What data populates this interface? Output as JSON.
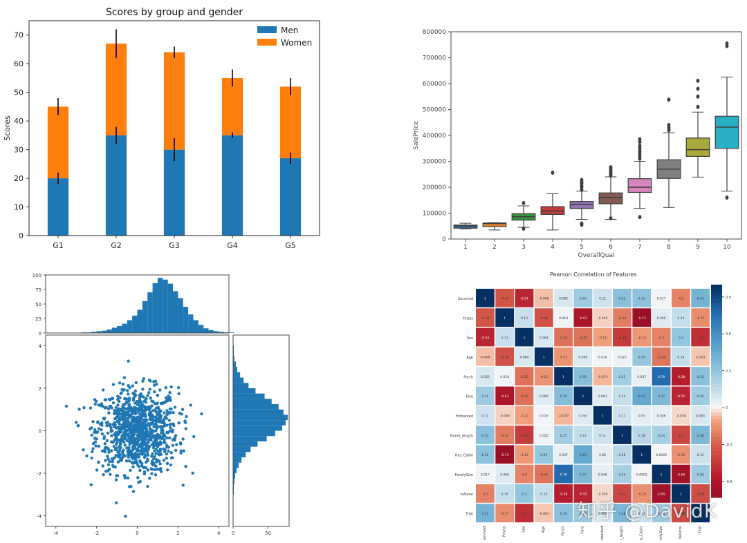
{
  "chart_data": [
    {
      "type": "bar",
      "title": "Scores by group and gender",
      "xlabel": "",
      "ylabel": "Scores",
      "ylim": [
        0,
        75
      ],
      "yticks": [
        0,
        10,
        20,
        30,
        40,
        50,
        60,
        70
      ],
      "categories": [
        "G1",
        "G2",
        "G3",
        "G4",
        "G5"
      ],
      "stacked": true,
      "series": [
        {
          "name": "Men",
          "values": [
            20,
            35,
            30,
            35,
            27
          ],
          "errors": [
            2,
            3,
            4,
            1,
            2
          ],
          "color": "#1f77b4"
        },
        {
          "name": "Women",
          "values": [
            25,
            32,
            34,
            20,
            25
          ],
          "errors": [
            3,
            5,
            2,
            3,
            3
          ],
          "color": "#ff7f0e"
        }
      ],
      "legend": "top-right"
    },
    {
      "type": "box",
      "title": "",
      "xlabel": "OverallQual",
      "ylabel": "SalePrice",
      "ylim": [
        0,
        800000
      ],
      "yticks": [
        0,
        100000,
        200000,
        300000,
        400000,
        500000,
        600000,
        700000,
        800000
      ],
      "categories": [
        "1",
        "2",
        "3",
        "4",
        "5",
        "6",
        "7",
        "8",
        "9",
        "10"
      ],
      "boxes": [
        {
          "whislo": 39300,
          "q1": 42000,
          "med": 50150,
          "q3": 54000,
          "whishi": 61000,
          "fliers": [],
          "color": "#3274a1"
        },
        {
          "whislo": 35000,
          "q1": 48000,
          "med": 60000,
          "q3": 62000,
          "whishi": 63000,
          "fliers": [],
          "color": "#e1812c"
        },
        {
          "whislo": 45000,
          "q1": 73000,
          "med": 86250,
          "q3": 98000,
          "whishi": 128000,
          "fliers": [
            139000,
            40000
          ],
          "color": "#3a923a"
        },
        {
          "whislo": 34900,
          "q1": 95000,
          "med": 108000,
          "q3": 125000,
          "whishi": 175000,
          "fliers": [
            256000
          ],
          "color": "#c03d3e"
        },
        {
          "whislo": 76000,
          "q1": 118000,
          "med": 133000,
          "q3": 145000,
          "whishi": 185000,
          "fliers": [
            190000,
            200000,
            205000,
            215000,
            220000,
            228000,
            60000,
            55000
          ],
          "color": "#9372b2"
        },
        {
          "whislo": 76000,
          "q1": 136000,
          "med": 160000,
          "q3": 178000,
          "whishi": 240000,
          "fliers": [
            245000,
            250000,
            255000,
            262000,
            270000,
            277000,
            80000
          ],
          "color": "#845b53"
        },
        {
          "whislo": 118000,
          "q1": 180000,
          "med": 200000,
          "q3": 233000,
          "whishi": 300000,
          "fliers": [
            310000,
            320000,
            330000,
            340000,
            350000,
            360000,
            375000,
            385000,
            85000
          ],
          "color": "#d684bd"
        },
        {
          "whislo": 122000,
          "q1": 234000,
          "med": 269750,
          "q3": 306000,
          "whishi": 410000,
          "fliers": [
            420000,
            430000,
            440000,
            538000
          ],
          "color": "#7f7f7f"
        },
        {
          "whislo": 239000,
          "q1": 319000,
          "med": 345000,
          "q3": 390000,
          "whishi": 490000,
          "fliers": [
            510000,
            550000,
            580000,
            611000
          ],
          "color": "#a9a83a"
        },
        {
          "whislo": 184750,
          "q1": 350000,
          "med": 432000,
          "q3": 474000,
          "whishi": 625000,
          "fliers": [
            745000,
            755000,
            160000
          ],
          "color": "#2ab0c5"
        }
      ]
    },
    {
      "type": "scatter",
      "title": "",
      "xlabel": "",
      "ylabel": "",
      "main_xlim": [
        -4.5,
        4.5
      ],
      "main_ylim": [
        -4.5,
        4.5
      ],
      "main_xticks": [
        -4,
        -2,
        0,
        2,
        4
      ],
      "main_yticks": [
        -4,
        -2,
        0,
        2,
        4
      ],
      "top_hist": {
        "yticks": [
          0,
          25,
          50,
          75,
          100
        ],
        "ylim": [
          0,
          100
        ],
        "bin_width": 0.25,
        "bin_start": -4,
        "counts": [
          0,
          0,
          0,
          0,
          0,
          1,
          1,
          2,
          3,
          4,
          6,
          9,
          12,
          16,
          22,
          30,
          40,
          55,
          70,
          86,
          95,
          92,
          85,
          72,
          60,
          45,
          32,
          22,
          14,
          8,
          5,
          3,
          2,
          1,
          1,
          0
        ]
      },
      "right_hist": {
        "xticks": [
          0,
          50
        ],
        "xlim": [
          0,
          80
        ],
        "bin_width": 0.25,
        "bin_start": -4,
        "counts": [
          0,
          0,
          0,
          0,
          1,
          1,
          2,
          3,
          5,
          8,
          12,
          18,
          25,
          35,
          48,
          60,
          70,
          75,
          78,
          72,
          65,
          55,
          45,
          32,
          22,
          15,
          10,
          6,
          4,
          2,
          1,
          1,
          0,
          0,
          0,
          0
        ]
      },
      "color": "#1f77b4",
      "n_points": 1000
    },
    {
      "type": "heatmap",
      "title": "Pearson Correlation of Features",
      "labels": [
        "Survived",
        "Pclass",
        "Sex",
        "Age",
        "Parch",
        "Fare",
        "Embarked",
        "Name_length",
        "Has_Cabin",
        "FamilySize",
        "IsAlone",
        "Title"
      ],
      "values": [
        [
          1,
          -0.34,
          -0.54,
          -0.068,
          0.082,
          0.26,
          0.11,
          0.33,
          0.32,
          0.017,
          -0.2,
          0.41
        ],
        [
          -0.34,
          1,
          0.13,
          -0.36,
          0.018,
          -0.63,
          -0.046,
          -0.22,
          -0.73,
          0.066,
          0.14,
          -0.17
        ],
        [
          -0.54,
          0.13,
          1,
          0.084,
          -0.25,
          -0.25,
          -0.12,
          -0.45,
          -0.14,
          -0.2,
          0.3,
          -0.5
        ],
        [
          -0.068,
          -0.36,
          0.084,
          1,
          -0.15,
          0.069,
          0.016,
          0.025,
          0.29,
          -0.24,
          0.14,
          -0.061
        ],
        [
          0.082,
          0.018,
          -0.25,
          -0.15,
          1,
          0.35,
          -0.079,
          0.25,
          0.037,
          0.78,
          -0.58,
          0.33
        ],
        [
          0.26,
          -0.63,
          -0.25,
          0.069,
          0.35,
          1,
          0.063,
          0.14,
          0.47,
          0.37,
          -0.55,
          0.26
        ],
        [
          0.11,
          -0.046,
          -0.12,
          0.016,
          -0.079,
          0.063,
          1,
          0.11,
          0.05,
          0.046,
          -0.038,
          0.085
        ],
        [
          0.33,
          -0.22,
          -0.45,
          0.025,
          0.25,
          0.14,
          0.11,
          1,
          0.18,
          0.24,
          -0.4,
          0.38
        ],
        [
          0.32,
          -0.73,
          -0.14,
          0.29,
          0.037,
          0.47,
          0.05,
          0.18,
          1,
          0.0093,
          -0.16,
          0.12
        ],
        [
          0.017,
          0.066,
          -0.2,
          -0.24,
          0.78,
          0.37,
          0.046,
          0.24,
          0.0093,
          1,
          -0.69,
          0.26
        ],
        [
          -0.2,
          0.14,
          0.3,
          0.14,
          -0.58,
          -0.55,
          -0.038,
          -0.4,
          -0.16,
          -0.69,
          1,
          -0.38
        ],
        [
          0.41,
          -0.17,
          -0.5,
          -0.061,
          0.33,
          0.26,
          0.085,
          0.38,
          0.12,
          0.26,
          -0.38,
          1
        ]
      ],
      "colorbar_ticks": [
        0.9,
        0.6,
        0.3,
        0.0,
        -0.3,
        -0.6
      ],
      "vmin": -0.73,
      "vmax": 1,
      "colormap": "RdBu"
    }
  ],
  "watermark": "知乎 @DavidK"
}
